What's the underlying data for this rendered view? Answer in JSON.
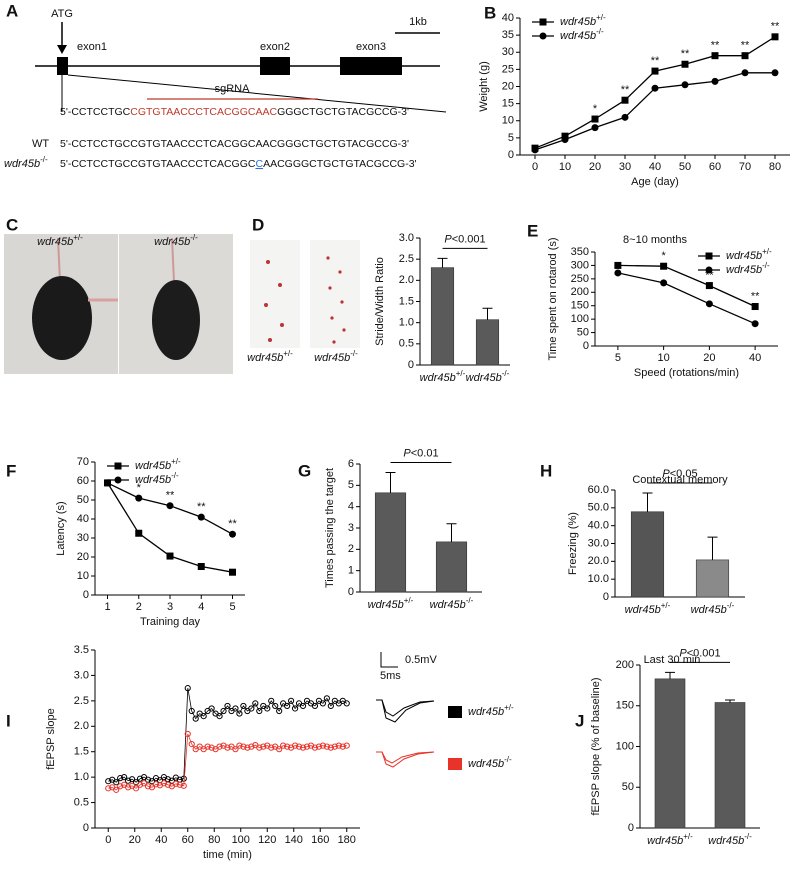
{
  "gene_diagram": {
    "panel": "A",
    "atg": "ATG",
    "exons": [
      "exon1",
      "exon2",
      "exon3"
    ],
    "scale": "1kb",
    "sgrna": "sgRNA",
    "sequence": {
      "prefix": "5'-CCTCCTGC",
      "target": "CGTGTAACCCTCACGGCAAC",
      "suffix": "GGGCTGCTGTACGCCG-3'"
    },
    "wt_label": "WT",
    "wt_sequence": "5'-CCTCCTGCCGTGTAACCCTCACGGCAACGGGCTGCTGTACGCCG-3'",
    "mutant_label": "wdr45b-/-",
    "mutant_sequence": {
      "prefix": "5'-CCTCCTGCCGTGTAACCCTCACGGC",
      "insert": "C",
      "suffix": "AACGGGCTGCTGTACGCCG-3'"
    }
  },
  "photos": {
    "panel": "C",
    "labels": [
      "wdr45b+/-",
      "wdr45b-/-"
    ]
  },
  "chart_data": [
    {
      "type": "line",
      "panel": "B",
      "xlabel": "Age (day)",
      "ylabel": "Weight (g)",
      "x": [
        0,
        10,
        20,
        30,
        40,
        50,
        60,
        70,
        80
      ],
      "xlim": [
        -5,
        85
      ],
      "xticks": [
        0,
        10,
        20,
        30,
        40,
        50,
        60,
        70,
        80
      ],
      "ylim": [
        0,
        40
      ],
      "yticks": [
        0,
        5,
        10,
        15,
        20,
        25,
        30,
        35,
        40
      ],
      "legend": "upper left",
      "series": [
        {
          "name": "wdr45b+/-",
          "color": "#000000",
          "marker": "square",
          "values": [
            2,
            5.5,
            10.5,
            16,
            24.5,
            26.5,
            29,
            29,
            34.5
          ]
        },
        {
          "name": "wdr45b-/-",
          "color": "#000000",
          "marker": "circle",
          "values": [
            1.5,
            4.5,
            8,
            11,
            19.5,
            20.5,
            21.5,
            24,
            24
          ]
        }
      ],
      "significance": [
        null,
        null,
        "*",
        "**",
        "**",
        "**",
        "**",
        "**",
        "**"
      ]
    },
    {
      "type": "bar",
      "panel": "D",
      "ylabel": "Stride/Width Ratio",
      "image_labels": [
        "wdr45b+/-",
        "wdr45b-/-"
      ],
      "categories": [
        "wdr45b+/-",
        "wdr45b-/-"
      ],
      "values": [
        2.3,
        1.07
      ],
      "errors": [
        0.22,
        0.27
      ],
      "colors": [
        "#5a5a5a",
        "#5a5a5a"
      ],
      "ylim": [
        0,
        3
      ],
      "yticks": [
        0,
        0.5,
        {
          "value": 1,
          "label": "1.0"
        },
        1.5,
        {
          "value": 2,
          "label": "2.0"
        },
        2.5,
        {
          "value": 3,
          "label": "3.0"
        }
      ],
      "comparison": "P<0.001"
    },
    {
      "type": "line",
      "panel": "E",
      "title": "8~10 months",
      "xlabel": "Speed (rotations/min)",
      "ylabel": "Time spent on rotarod (s)",
      "categories": [
        "5",
        "10",
        "20",
        "40"
      ],
      "ylim": [
        0,
        350
      ],
      "yticks": [
        0,
        50,
        100,
        150,
        200,
        250,
        300,
        350
      ],
      "legend": "upper right",
      "series": [
        {
          "name": "wdr45b+/-",
          "color": "#000000",
          "marker": "square",
          "values": [
            300,
            297,
            225,
            147
          ]
        },
        {
          "name": "wdr45b-/-",
          "color": "#000000",
          "marker": "circle",
          "values": [
            272,
            235,
            157,
            83
          ]
        }
      ],
      "significance": [
        null,
        "*",
        "**",
        "**"
      ]
    },
    {
      "type": "line",
      "panel": "F",
      "xlabel": "Training day",
      "ylabel": "Latency (s)",
      "x": [
        1,
        2,
        3,
        4,
        5
      ],
      "xlim": [
        0.6,
        5.4
      ],
      "xticks": [
        1,
        2,
        3,
        4,
        5
      ],
      "ylim": [
        0,
        70
      ],
      "yticks": [
        0,
        10,
        20,
        30,
        40,
        50,
        60,
        70
      ],
      "legend": "upper left",
      "series": [
        {
          "name": "wdr45b+/-",
          "color": "#000000",
          "marker": "square",
          "values": [
            59,
            32.5,
            20.5,
            15,
            12
          ]
        },
        {
          "name": "wdr45b-/-",
          "color": "#000000",
          "marker": "circle",
          "values": [
            59,
            51,
            47,
            41,
            32
          ]
        }
      ],
      "significance": [
        null,
        "*",
        "**",
        "**",
        "**"
      ]
    },
    {
      "type": "bar",
      "panel": "G",
      "ylabel": "Times passing the target",
      "categories": [
        "wdr45b+/-",
        "wdr45b-/-"
      ],
      "values": [
        4.65,
        2.35
      ],
      "errors": [
        0.95,
        0.85
      ],
      "colors": [
        "#5a5a5a",
        "#5a5a5a"
      ],
      "ylim": [
        0,
        6
      ],
      "yticks": [
        0,
        1,
        2,
        3,
        4,
        5,
        6
      ],
      "comparison": "P<0.01"
    },
    {
      "type": "bar",
      "panel": "H",
      "title": "Contextual memory",
      "ylabel": "Freezing (%)",
      "categories": [
        "wdr45b+/-",
        "wdr45b-/-"
      ],
      "values": [
        47.8,
        20.8
      ],
      "errors": [
        10.5,
        12.8
      ],
      "colors": [
        "#555555",
        "#8a8a8a"
      ],
      "ylim": [
        0,
        60
      ],
      "yticks": [
        0,
        {
          "value": 10,
          "label": "10.0"
        },
        {
          "value": 20,
          "label": "20.0"
        },
        {
          "value": 30,
          "label": "30.0"
        },
        {
          "value": 40,
          "label": "40.0"
        },
        {
          "value": 50,
          "label": "50.0"
        },
        {
          "value": 60,
          "label": "60.0"
        }
      ],
      "comparison": "P<0.05"
    },
    {
      "type": "line",
      "panel": "I",
      "xlabel": "time (min)",
      "ylabel": "fEPSP slope",
      "scale_labels": [
        "0.5mV",
        "5ms"
      ],
      "legend": "right",
      "x": [
        0,
        3,
        6,
        9,
        12,
        15,
        18,
        21,
        24,
        27,
        30,
        33,
        36,
        39,
        42,
        45,
        48,
        51,
        54,
        57,
        60,
        63,
        66,
        69,
        72,
        75,
        78,
        81,
        84,
        87,
        90,
        93,
        96,
        99,
        102,
        105,
        108,
        111,
        114,
        117,
        120,
        123,
        126,
        129,
        132,
        135,
        138,
        141,
        144,
        147,
        150,
        153,
        156,
        159,
        162,
        165,
        168,
        171,
        174,
        177,
        180
      ],
      "xlim": [
        -10,
        190
      ],
      "xticks": [
        0,
        20,
        40,
        60,
        80,
        100,
        120,
        140,
        160,
        180
      ],
      "ylim": [
        0,
        3.5
      ],
      "yticks": [
        0,
        0.5,
        {
          "value": 1,
          "label": "1.0"
        },
        1.5,
        {
          "value": 2,
          "label": "2.0"
        },
        2.5,
        {
          "value": 3,
          "label": "3.0"
        },
        3.5
      ],
      "series": [
        {
          "name": "wdr45b+/-",
          "color": "#000000",
          "marker": "ring",
          "values": [
            0.92,
            0.95,
            0.9,
            0.98,
            1.0,
            0.93,
            0.96,
            0.9,
            0.97,
            1.0,
            0.95,
            0.92,
            0.98,
            0.94,
            1.0,
            0.96,
            0.93,
            0.99,
            0.95,
            0.97,
            2.75,
            2.3,
            2.15,
            2.25,
            2.2,
            2.3,
            2.35,
            2.25,
            2.2,
            2.3,
            2.4,
            2.3,
            2.35,
            2.25,
            2.4,
            2.3,
            2.35,
            2.45,
            2.3,
            2.4,
            2.35,
            2.5,
            2.4,
            2.3,
            2.45,
            2.4,
            2.5,
            2.35,
            2.45,
            2.4,
            2.5,
            2.45,
            2.4,
            2.5,
            2.45,
            2.55,
            2.4,
            2.5,
            2.45,
            2.5,
            2.45
          ]
        },
        {
          "name": "wdr45b-/-",
          "color": "#e8332a",
          "marker": "ring",
          "values": [
            0.78,
            0.8,
            0.75,
            0.82,
            0.85,
            0.8,
            0.83,
            0.78,
            0.85,
            0.88,
            0.82,
            0.8,
            0.86,
            0.84,
            0.88,
            0.85,
            0.82,
            0.87,
            0.85,
            0.83,
            1.85,
            1.65,
            1.55,
            1.6,
            1.55,
            1.6,
            1.58,
            1.55,
            1.6,
            1.62,
            1.58,
            1.6,
            1.55,
            1.62,
            1.6,
            1.58,
            1.6,
            1.63,
            1.58,
            1.6,
            1.62,
            1.58,
            1.6,
            1.55,
            1.62,
            1.6,
            1.58,
            1.62,
            1.6,
            1.58,
            1.6,
            1.62,
            1.58,
            1.6,
            1.62,
            1.6,
            1.58,
            1.6,
            1.62,
            1.6,
            1.62
          ]
        }
      ]
    },
    {
      "type": "bar",
      "panel": "J",
      "title": "Last 30 min",
      "ylabel": "fEPSP slope (% of baseline)",
      "categories": [
        "wdr45b+/-",
        "wdr45b-/-"
      ],
      "values": [
        183,
        154
      ],
      "errors": [
        8,
        3
      ],
      "colors": [
        "#5a5a5a",
        "#5a5a5a"
      ],
      "ylim": [
        0,
        200
      ],
      "yticks": [
        0,
        50,
        100,
        150,
        200
      ],
      "comparison": "P<0.001"
    }
  ]
}
